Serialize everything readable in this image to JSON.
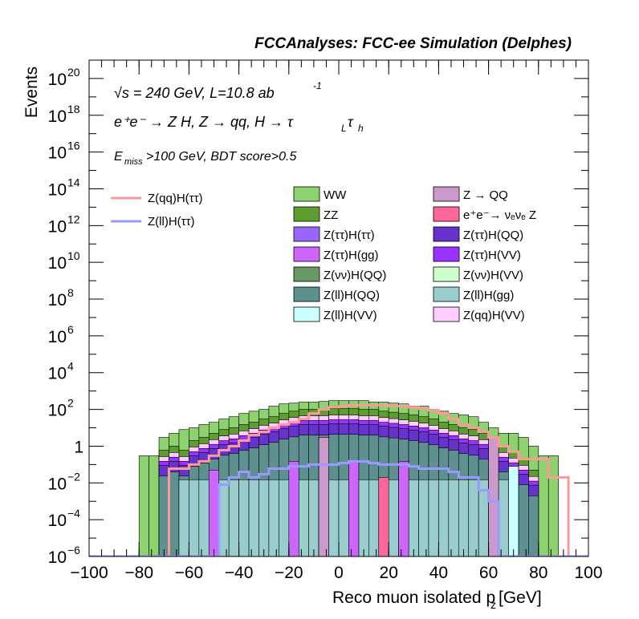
{
  "header_title": "FCCAnalyses: FCC-ee Simulation (Delphes)",
  "annotations": {
    "energy": "√s = 240 GeV, L=10.8 ab",
    "energy_sup": "-1",
    "process": "e⁺e⁻ → Z H, Z → qq, H → τ",
    "process_sub1": "L",
    "process_tau": "τ",
    "process_sub2": "h",
    "cuts_prefix": "E",
    "cuts_sub": "miss",
    "cuts_rest": ">100 GeV, BDT score>0.5"
  },
  "colors": {
    "WW": "#8ed16f",
    "ZZ": "#5e9e2f",
    "Z_QQ": "#cc99cc",
    "ee_nunuZ": "#ff6699",
    "Ztautau_Htautau": "#9966ff",
    "Ztautau_HQQ": "#6633cc",
    "Ztautau_Hgg": "#cc66ff",
    "Ztautau_HVV": "#9933ff",
    "Znunu_HQQ": "#669966",
    "Znunu_HVV": "#ccffcc",
    "Zll_HQQ": "#5e9090",
    "Zll_Hgg": "#99cccc",
    "Zll_HVV": "#ccffff",
    "Zqq_HVV": "#ffccff",
    "sig_qq": "#ff9999",
    "sig_ll": "#9999ff"
  },
  "chart_data": {
    "type": "histogram-stacked",
    "title": "FCCAnalyses: FCC-ee Simulation (Delphes)",
    "xlabel": "Reco muon isolated p",
    "xlabel_sub": "z",
    "xlabel_unit": " [GeV]",
    "ylabel": "Events",
    "xlim": [
      -100,
      100
    ],
    "ylim": [
      1e-06,
      1e+21
    ],
    "log_y": true,
    "grid": false,
    "legend_position": "top",
    "x_ticks": [
      "−100",
      "−80",
      "−60",
      "−40",
      "−20",
      "0",
      "20",
      "40",
      "60",
      "80",
      "100"
    ],
    "y_ticks": [
      {
        "base": "10",
        "exp": "−6"
      },
      {
        "base": "10",
        "exp": "−4"
      },
      {
        "base": "10",
        "exp": "−2"
      },
      {
        "base": "1",
        "exp": ""
      },
      {
        "base": "10",
        "exp": "2"
      },
      {
        "base": "10",
        "exp": "4"
      },
      {
        "base": "10",
        "exp": "6"
      },
      {
        "base": "10",
        "exp": "8"
      },
      {
        "base": "10",
        "exp": "10"
      },
      {
        "base": "10",
        "exp": "12"
      },
      {
        "base": "10",
        "exp": "14"
      },
      {
        "base": "10",
        "exp": "16"
      },
      {
        "base": "10",
        "exp": "18"
      },
      {
        "base": "10",
        "exp": "20"
      }
    ],
    "bin_edges_start": -100,
    "bin_width": 4,
    "stack_top_WW": [
      0,
      0,
      0,
      0,
      0,
      0.3,
      0.3,
      3,
      5,
      8,
      10,
      15,
      20,
      30,
      40,
      60,
      80,
      100,
      150,
      200,
      220,
      250,
      250,
      270,
      300,
      300,
      300,
      300,
      250,
      250,
      220,
      200,
      150,
      150,
      100,
      80,
      60,
      50,
      40,
      20,
      10,
      5,
      5,
      3,
      1,
      0.3,
      0.3,
      0,
      0,
      0
    ],
    "stack_top_ZZ": [
      0,
      0,
      0,
      0,
      0,
      0,
      0,
      0.6,
      1,
      0.6,
      2,
      3,
      5,
      8,
      10,
      15,
      20,
      30,
      40,
      60,
      80,
      100,
      100,
      100,
      110,
      110,
      110,
      100,
      100,
      80,
      70,
      60,
      50,
      40,
      30,
      20,
      15,
      10,
      8,
      5,
      1,
      1,
      0.5,
      0.2,
      0.05,
      0,
      0,
      0,
      0,
      0
    ],
    "legend": [
      {
        "name": "WW",
        "color_key": "WW"
      },
      {
        "name": "Z → QQ",
        "color_key": "Z_QQ"
      },
      {
        "name": "ZZ",
        "color_key": "ZZ"
      },
      {
        "name": "e⁺e⁻→ νₑνₑ Z",
        "color_key": "ee_nunuZ"
      },
      {
        "name": "Z(ττ)H(ττ)",
        "color_key": "Ztautau_Htautau"
      },
      {
        "name": "Z(ττ)H(QQ)",
        "color_key": "Ztautau_HQQ"
      },
      {
        "name": "Z(ττ)H(gg)",
        "color_key": "Ztautau_Hgg"
      },
      {
        "name": "Z(ττ)H(VV)",
        "color_key": "Ztautau_HVV"
      },
      {
        "name": "Z(νν)H(QQ)",
        "color_key": "Znunu_HQQ"
      },
      {
        "name": "Z(νν)H(VV)",
        "color_key": "Znunu_HVV"
      },
      {
        "name": "Z(ll)H(QQ)",
        "color_key": "Zll_HQQ"
      },
      {
        "name": "Z(ll)H(gg)",
        "color_key": "Zll_Hgg"
      },
      {
        "name": "Z(ll)H(VV)",
        "color_key": "Zll_HVV"
      },
      {
        "name": "Z(qq)H(VV)",
        "color_key": "Zqq_HVV"
      }
    ],
    "signal_legend": [
      {
        "name": "Z(qq)H(ττ)",
        "color_key": "sig_qq"
      },
      {
        "name": "Z(ll)H(ττ)",
        "color_key": "sig_ll"
      }
    ],
    "signal_qq": [
      0,
      0,
      0,
      0,
      1e-06,
      1e-06,
      1e-06,
      1e-06,
      0.06,
      0.06,
      0.1,
      0.15,
      0.3,
      0.6,
      1,
      2,
      4,
      6,
      10,
      15,
      20,
      30,
      60,
      100,
      130,
      150,
      170,
      170,
      170,
      170,
      150,
      150,
      130,
      110,
      90,
      60,
      30,
      15,
      10,
      6,
      3,
      1,
      0.5,
      0.2,
      0.2,
      0.2,
      0.02,
      0.02,
      1e-06,
      1e-06
    ],
    "signal_ll": [
      0,
      0,
      0,
      0,
      1e-06,
      1e-06,
      1e-06,
      1e-06,
      1e-06,
      1e-06,
      1e-06,
      1e-06,
      1e-06,
      0.008,
      0.02,
      0.04,
      0.02,
      0.03,
      0.06,
      0.06,
      0.08,
      0.08,
      0.1,
      0.1,
      0.1,
      0.12,
      0.15,
      0.15,
      0.12,
      0.1,
      0.1,
      0.1,
      0.08,
      0.06,
      0.06,
      0.06,
      0.04,
      0.02,
      0.02,
      0.004,
      0.001,
      1e-06,
      1e-06,
      1e-06,
      1e-06,
      1e-06,
      1e-06,
      1e-06,
      1e-06,
      1e-06
    ]
  }
}
